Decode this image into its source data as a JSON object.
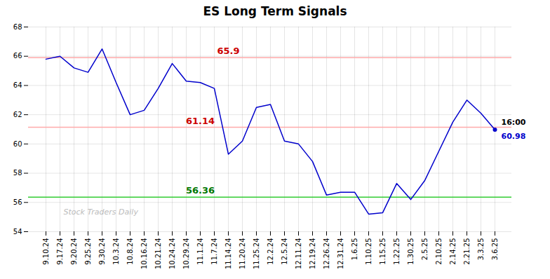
{
  "chart_data": {
    "type": "line",
    "title": "ES Long Term Signals",
    "categories": [
      "9.10.24",
      "9.17.24",
      "9.20.24",
      "9.25.24",
      "9.30.24",
      "10.3.24",
      "10.8.24",
      "10.16.24",
      "10.21.24",
      "10.24.24",
      "10.29.24",
      "11.1.24",
      "11.7.24",
      "11.14.24",
      "11.20.24",
      "11.25.24",
      "12.2.24",
      "12.5.24",
      "12.11.24",
      "12.19.24",
      "12.26.24",
      "12.31.24",
      "1.6.25",
      "1.10.25",
      "1.15.25",
      "1.22.25",
      "1.30.25",
      "2.5.25",
      "2.10.25",
      "2.14.25",
      "2.21.25",
      "3.3.25",
      "3.6.25"
    ],
    "values": [
      65.8,
      66.0,
      65.2,
      64.9,
      66.5,
      64.2,
      62.0,
      62.3,
      63.8,
      65.5,
      64.3,
      64.2,
      63.8,
      59.3,
      60.2,
      62.5,
      62.7,
      60.2,
      60.0,
      58.8,
      56.5,
      56.7,
      56.7,
      55.2,
      55.3,
      57.3,
      56.2,
      57.5,
      59.5,
      61.5,
      63.0,
      62.1,
      60.98
    ],
    "color": "#0000cc",
    "ylim": [
      54,
      68
    ],
    "yticks": [
      54,
      56,
      58,
      60,
      62,
      64,
      66,
      68
    ],
    "grid": true,
    "reference_lines": [
      {
        "value": 65.9,
        "color": "#ffaaaa",
        "label": "65.9",
        "label_color": "#cc0000"
      },
      {
        "value": 61.14,
        "color": "#ffaaaa",
        "label": "61.14",
        "label_color": "#cc0000"
      },
      {
        "value": 56.36,
        "color": "#33cc33",
        "label": "56.36",
        "label_color": "#007700"
      }
    ],
    "end_labels": [
      {
        "text": "16:00",
        "color": "#000000"
      },
      {
        "text": "60.98",
        "color": "#0000cc"
      }
    ],
    "watermark": {
      "text": "Stock Traders Daily",
      "color": "#bbbbbb"
    }
  }
}
